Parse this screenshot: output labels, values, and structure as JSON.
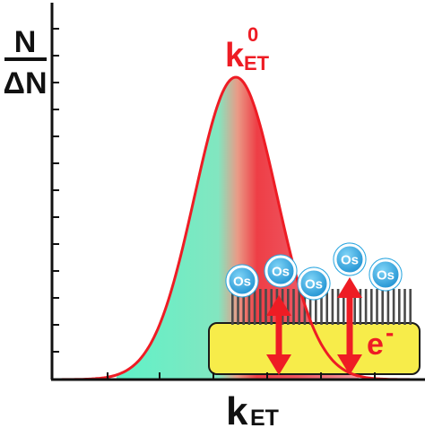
{
  "y_axis": {
    "numerator": "N",
    "denominator": "ΔN"
  },
  "x_axis": {
    "main": "k",
    "sub": "ET"
  },
  "peak_label": {
    "main": "k",
    "sup": "0",
    "sub": "ET"
  },
  "electron_label": {
    "main": "e",
    "sup": "-"
  },
  "molecule_labels": [
    "Os",
    "Os",
    "Os",
    "Os",
    "Os"
  ],
  "colors": {
    "curve": "#ee1c24",
    "fill_center": "#ee3e46",
    "fill_tail": "#5ff2c8",
    "electrode": "#f7ec4a",
    "arrow": "#ee1c24",
    "os_circle": "#2aa6e0",
    "label_red": "#ee1c24"
  }
}
